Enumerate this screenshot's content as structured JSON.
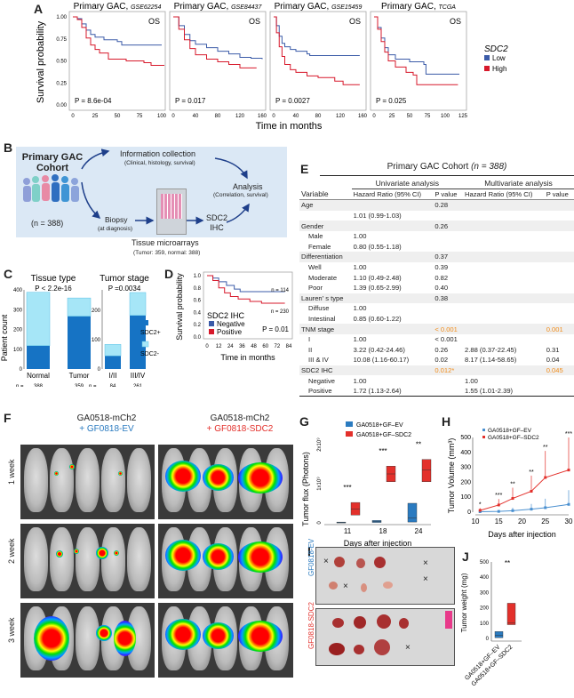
{
  "panel_labels": [
    "A",
    "B",
    "C",
    "D",
    "E",
    "F",
    "G",
    "H",
    "I",
    "J"
  ],
  "panelA": {
    "ylabel": "Survival probability",
    "xlabel": "Time in months",
    "yticks": [
      "1.00",
      "0.75",
      "0.50",
      "0.25",
      "0.00"
    ],
    "plots": [
      {
        "title": "Primary GAC,",
        "dataset": "GSE62254",
        "tag": "OS",
        "p": "P = 8.6e-04",
        "xticks": [
          "0",
          "25",
          "50",
          "75",
          "100"
        ],
        "xmax": 100,
        "low": [
          [
            0,
            1
          ],
          [
            5,
            0.98
          ],
          [
            10,
            0.92
          ],
          [
            15,
            0.85
          ],
          [
            20,
            0.8
          ],
          [
            25,
            0.77
          ],
          [
            35,
            0.74
          ],
          [
            50,
            0.72
          ],
          [
            55,
            0.68
          ],
          [
            100,
            0.68
          ]
        ],
        "high": [
          [
            0,
            1
          ],
          [
            5,
            0.97
          ],
          [
            10,
            0.88
          ],
          [
            15,
            0.76
          ],
          [
            20,
            0.68
          ],
          [
            25,
            0.63
          ],
          [
            30,
            0.59
          ],
          [
            40,
            0.52
          ],
          [
            60,
            0.5
          ],
          [
            80,
            0.48
          ],
          [
            88,
            0.45
          ],
          [
            103,
            0.45
          ]
        ]
      },
      {
        "title": "Primary GAC,",
        "dataset": "GSE84437",
        "tag": "OS",
        "p": "P = 0.017",
        "xticks": [
          "0",
          "40",
          "80",
          "120",
          "160"
        ],
        "xmax": 160,
        "low": [
          [
            0,
            1
          ],
          [
            10,
            0.9
          ],
          [
            20,
            0.8
          ],
          [
            30,
            0.73
          ],
          [
            40,
            0.69
          ],
          [
            60,
            0.65
          ],
          [
            80,
            0.61
          ],
          [
            100,
            0.58
          ],
          [
            120,
            0.54
          ],
          [
            140,
            0.53
          ],
          [
            160,
            0.52
          ]
        ],
        "high": [
          [
            0,
            1
          ],
          [
            10,
            0.86
          ],
          [
            20,
            0.74
          ],
          [
            30,
            0.64
          ],
          [
            40,
            0.57
          ],
          [
            60,
            0.52
          ],
          [
            80,
            0.49
          ],
          [
            100,
            0.46
          ],
          [
            120,
            0.42
          ],
          [
            150,
            0.42
          ]
        ]
      },
      {
        "title": "Primary GAC,",
        "dataset": "GSE15459",
        "tag": "OS",
        "p": "P = 0.0027",
        "xticks": [
          "0",
          "40",
          "80",
          "120",
          "160"
        ],
        "xmax": 160,
        "low": [
          [
            0,
            1
          ],
          [
            5,
            0.9
          ],
          [
            10,
            0.78
          ],
          [
            15,
            0.7
          ],
          [
            20,
            0.66
          ],
          [
            30,
            0.63
          ],
          [
            40,
            0.61
          ],
          [
            60,
            0.58
          ],
          [
            65,
            0.56
          ],
          [
            155,
            0.56
          ]
        ],
        "high": [
          [
            0,
            1
          ],
          [
            5,
            0.82
          ],
          [
            10,
            0.66
          ],
          [
            15,
            0.55
          ],
          [
            20,
            0.46
          ],
          [
            30,
            0.4
          ],
          [
            40,
            0.37
          ],
          [
            60,
            0.33
          ],
          [
            80,
            0.31
          ],
          [
            110,
            0.27
          ],
          [
            125,
            0.23
          ],
          [
            155,
            0.23
          ]
        ]
      },
      {
        "title": "Primary GAC,",
        "dataset": "TCGA",
        "tag": "OS",
        "p": "P = 0.025",
        "xticks": [
          "0",
          "25",
          "50",
          "75",
          "100",
          "125"
        ],
        "xmax": 125,
        "low": [
          [
            0,
            1
          ],
          [
            5,
            0.88
          ],
          [
            10,
            0.76
          ],
          [
            15,
            0.65
          ],
          [
            20,
            0.57
          ],
          [
            30,
            0.52
          ],
          [
            50,
            0.49
          ],
          [
            70,
            0.46
          ],
          [
            73,
            0.35
          ],
          [
            120,
            0.35
          ]
        ],
        "high": [
          [
            0,
            1
          ],
          [
            5,
            0.86
          ],
          [
            10,
            0.72
          ],
          [
            15,
            0.6
          ],
          [
            20,
            0.5
          ],
          [
            30,
            0.43
          ],
          [
            45,
            0.37
          ],
          [
            55,
            0.34
          ],
          [
            60,
            0.23
          ],
          [
            118,
            0.23
          ]
        ]
      }
    ],
    "legend": {
      "title": "SDC2",
      "items": [
        {
          "label": "Low",
          "color": "#3b5ba8"
        },
        {
          "label": "High",
          "color": "#d7192b"
        }
      ]
    }
  },
  "panelB": {
    "cohort_title": "Primary GAC Cohort",
    "n": "(n = 388)",
    "info_title": "Information collection",
    "info_sub": "(Clinical, histology, survival)",
    "analysis_title": "Analysis",
    "analysis_sub": "(Correlation, survival)",
    "biopsy": "Biopsy",
    "biopsy_sub": "(at diagnosis)",
    "tma_title": "Tissue microarrays",
    "tma_sub": "(Tumor: 359, normal: 388)",
    "ihc1": "SDC2",
    "ihc2": "IHC"
  },
  "panelC": {
    "chart_data": {
      "type": "bar",
      "ylabel": "Patient count",
      "groups": [
        {
          "title": "Tissue type",
          "p": "P < 2.2e-16",
          "categories": [
            "Normal",
            "Tumor"
          ],
          "n": [
            "388",
            "359"
          ],
          "sdc2_pos": [
            118,
            267
          ],
          "sdc2_neg": [
            270,
            92
          ],
          "ylim": [
            0,
            400
          ],
          "yticks": [
            "0",
            "100",
            "200",
            "300",
            "400"
          ]
        },
        {
          "title": "Tumor stage",
          "p": "P =0.0034",
          "categories": [
            "I/II",
            "III/IV"
          ],
          "n": [
            "84",
            "261"
          ],
          "sdc2_pos": [
            45,
            183
          ],
          "sdc2_neg": [
            39,
            78
          ],
          "ylim": [
            0,
            270
          ],
          "yticks": [
            "0",
            "100",
            "200"
          ]
        }
      ],
      "n_label": "n =",
      "legend": [
        {
          "label": "SDC2+",
          "color": "#1673c4"
        },
        {
          "label": "SDC2-",
          "color": "#a6e6f7"
        }
      ]
    }
  },
  "panelD": {
    "chart_data": {
      "type": "line",
      "ylabel": "Survival probability",
      "xlabel": "Time in months",
      "xticks": [
        "0",
        "12",
        "24",
        "36",
        "48",
        "60",
        "72",
        "84"
      ],
      "yticks": [
        "1.0",
        "0.8",
        "0.6",
        "0.4",
        "0.2",
        "0.0"
      ],
      "legend_title": "SDC2 IHC",
      "series": [
        {
          "name": "Negative",
          "color": "#3b5ba8",
          "n": "n = 114",
          "points": [
            [
              0,
              1
            ],
            [
              6,
              0.96
            ],
            [
              12,
              0.9
            ],
            [
              20,
              0.84
            ],
            [
              28,
              0.78
            ],
            [
              34,
              0.74
            ],
            [
              80,
              0.74
            ]
          ]
        },
        {
          "name": "Positive",
          "color": "#d7192b",
          "n": "n = 230",
          "points": [
            [
              0,
              1
            ],
            [
              6,
              0.92
            ],
            [
              12,
              0.8
            ],
            [
              18,
              0.72
            ],
            [
              24,
              0.66
            ],
            [
              32,
              0.62
            ],
            [
              44,
              0.58
            ],
            [
              56,
              0.55
            ],
            [
              80,
              0.55
            ]
          ]
        }
      ],
      "p": "P = 0.01"
    }
  },
  "panelE": {
    "title": "Primary GAC Cohort",
    "title_n": "(n = 388)",
    "uni": "Univariate analysis",
    "multi": "Multivariate analysis",
    "headers": [
      "Variable",
      "Hazard Ratio (95% CI)",
      "P value",
      "Hazard Ratio (95% CI)",
      "P value"
    ],
    "rows": [
      {
        "v": "Age",
        "hr1": "",
        "p1": "0.28",
        "hr2": "",
        "p2": "",
        "group": true
      },
      {
        "v": "",
        "hr1": "1.01 (0.99-1.03)",
        "p1": "",
        "hr2": "",
        "p2": ""
      },
      {
        "v": "Gender",
        "hr1": "",
        "p1": "0.26",
        "hr2": "",
        "p2": "",
        "group": true
      },
      {
        "v": "Male",
        "hr1": "1.00",
        "p1": "",
        "hr2": "",
        "p2": ""
      },
      {
        "v": "Female",
        "hr1": "0.80 (0.55-1.18)",
        "p1": "",
        "hr2": "",
        "p2": ""
      },
      {
        "v": "Differentiation",
        "hr1": "",
        "p1": "0.37",
        "hr2": "",
        "p2": "",
        "group": true
      },
      {
        "v": "Well",
        "hr1": "1.00",
        "p1": "0.39",
        "hr2": "",
        "p2": ""
      },
      {
        "v": "Moderate",
        "hr1": "1.10 (0.49-2.48)",
        "p1": "0.82",
        "hr2": "",
        "p2": ""
      },
      {
        "v": "Poor",
        "hr1": "1.39 (0.65-2.99)",
        "p1": "0.40",
        "hr2": "",
        "p2": ""
      },
      {
        "v": "Lauren' s type",
        "hr1": "",
        "p1": "0.38",
        "hr2": "",
        "p2": "",
        "group": true
      },
      {
        "v": "Diffuse",
        "hr1": "1.00",
        "p1": "",
        "hr2": "",
        "p2": ""
      },
      {
        "v": "Intestinal",
        "hr1": "0.85 (0.60-1.22)",
        "p1": "",
        "hr2": "",
        "p2": ""
      },
      {
        "v": "TNM stage",
        "hr1": "",
        "p1": "< 0.001",
        "hr2": "",
        "p2": "0.001",
        "group": true,
        "orange": true
      },
      {
        "v": "I",
        "hr1": "1.00",
        "p1": "< 0.001",
        "hr2": "",
        "p2": ""
      },
      {
        "v": "II",
        "hr1": "3.22 (0.42-24.46)",
        "p1": "0.26",
        "hr2": "2.88 (0.37-22.45)",
        "p2": "0.31"
      },
      {
        "v": "III & IV",
        "hr1": "10.08 (1.16-60.17)",
        "p1": "0.02",
        "hr2": "8.17 (1.14-58.65)",
        "p2": "0.04"
      },
      {
        "v": "SDC2 IHC",
        "hr1": "",
        "p1": "0.012*",
        "hr2": "",
        "p2": "0.045",
        "group": true,
        "orange": true
      },
      {
        "v": "Negative",
        "hr1": "1.00",
        "p1": "",
        "hr2": "1.00",
        "p2": ""
      },
      {
        "v": "Positive",
        "hr1": "1.72 (1.13-2.64)",
        "p1": "",
        "hr2": "1.55 (1.01-2.39)",
        "p2": ""
      }
    ]
  },
  "panelF": {
    "left_title": "GA0518-mCh2",
    "left_sub": "+ GF0818-EV",
    "right_title": "GA0518-mCh2",
    "right_sub": "+ GF0818-SDC2",
    "rows": [
      "1 week",
      "2 week",
      "3 week"
    ]
  },
  "panelG": {
    "chart_data": {
      "type": "box",
      "ylabel": "Tumor flux (Photons)",
      "xlabel": "Days after injection",
      "categories": [
        "11",
        "18",
        "24"
      ],
      "yticks": [
        "0",
        "1x10⁹",
        "2x10⁹"
      ],
      "series": [
        {
          "name": "GA0518+GF–EV",
          "color": "#2b7bc0",
          "median": [
            0.01,
            0.03,
            0.12
          ],
          "q1": [
            0,
            0.01,
            0.02
          ],
          "q3": [
            0.02,
            0.06,
            0.5
          ]
        },
        {
          "name": "GA0518+GF–SDC2",
          "color": "#e3302b",
          "median": [
            0.35,
            1.25,
            1.35
          ],
          "q1": [
            0.2,
            1.05,
            1.05
          ],
          "q3": [
            0.52,
            1.45,
            1.62
          ]
        }
      ],
      "significance": [
        "***",
        "***",
        "**"
      ]
    }
  },
  "panelH": {
    "chart_data": {
      "type": "line",
      "ylabel": "Tumor Volume (mm³)",
      "xlabel": "Days after injection",
      "x": [
        11,
        15,
        18,
        22,
        25,
        30
      ],
      "xticks": [
        "10",
        "15",
        "20",
        "25",
        "30"
      ],
      "yticks": [
        "0",
        "100",
        "200",
        "300",
        "400",
        "500"
      ],
      "ylim": [
        0,
        500
      ],
      "series": [
        {
          "name": "GA0518+GF–EV",
          "color": "#4a90d0",
          "values": [
            3,
            5,
            10,
            20,
            30,
            52
          ],
          "err": [
            5,
            10,
            20,
            35,
            60,
            95
          ]
        },
        {
          "name": "GA0518+GF–SDC2",
          "color": "#e3302b",
          "values": [
            12,
            48,
            92,
            140,
            232,
            282
          ],
          "err": [
            15,
            40,
            72,
            105,
            178,
            280
          ]
        }
      ],
      "significance": [
        "*",
        "***",
        "**",
        "**",
        "**",
        "***"
      ]
    }
  },
  "panelI": {
    "top_label": "GF0818-EV",
    "bottom_label": "GF0818-SDC2"
  },
  "panelJ": {
    "chart_data": {
      "type": "box",
      "ylabel": "Tumor weight (mg)",
      "categories": [
        "GA0518+GF–EV",
        "GA0518+GF–SDC2"
      ],
      "yticks": [
        "0",
        "100",
        "200",
        "300",
        "400",
        "500"
      ],
      "ylim": [
        0,
        500
      ],
      "median": [
        20,
        100
      ],
      "q1": [
        5,
        90
      ],
      "q3": [
        45,
        230
      ],
      "colors": [
        "#2b7bc0",
        "#e3302b"
      ],
      "significance": "**"
    }
  }
}
